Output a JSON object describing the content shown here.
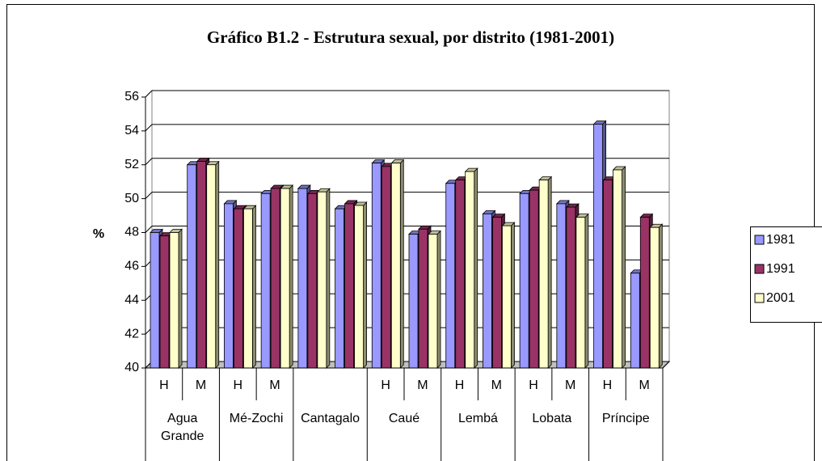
{
  "chart_data": {
    "type": "bar",
    "title": "Gráfico B1.2 - Estrutura sexual, por distrito (1981-2001)",
    "ylabel": "%",
    "categories": [
      "H",
      "M",
      "H",
      "M",
      null,
      null,
      "H",
      "M",
      "H",
      "M",
      "H",
      "M",
      "H",
      "M"
    ],
    "groups": [
      {
        "name": "Agua Grande",
        "count": 2
      },
      {
        "name": "Mé-Zochi",
        "count": 2
      },
      {
        "name": "Cantagalo",
        "count": 2
      },
      {
        "name": "Caué",
        "count": 2
      },
      {
        "name": "Lembá",
        "count": 2
      },
      {
        "name": "Lobata",
        "count": 2
      },
      {
        "name": "Príncipe",
        "count": 2
      }
    ],
    "series": [
      {
        "name": "1981",
        "color": "#9999ff",
        "values": [
          48.0,
          52.0,
          49.7,
          50.3,
          50.6,
          49.4,
          52.1,
          47.9,
          50.9,
          49.1,
          50.3,
          49.7,
          54.4,
          45.6
        ]
      },
      {
        "name": "1991",
        "color": "#993366",
        "values": [
          47.8,
          52.2,
          49.4,
          50.6,
          50.3,
          49.7,
          51.9,
          48.2,
          51.1,
          48.9,
          50.5,
          49.5,
          51.1,
          48.9
        ]
      },
      {
        "name": "2001",
        "color": "#ffffcc",
        "values": [
          48.0,
          52.0,
          49.4,
          50.6,
          50.4,
          49.6,
          52.1,
          47.9,
          51.6,
          48.4,
          51.1,
          48.9,
          51.7,
          48.3
        ]
      }
    ],
    "ylim": [
      40,
      56
    ],
    "yticks": [
      40,
      42,
      44,
      46,
      48,
      50,
      52,
      54,
      56
    ],
    "grid": true,
    "legend": "right"
  }
}
